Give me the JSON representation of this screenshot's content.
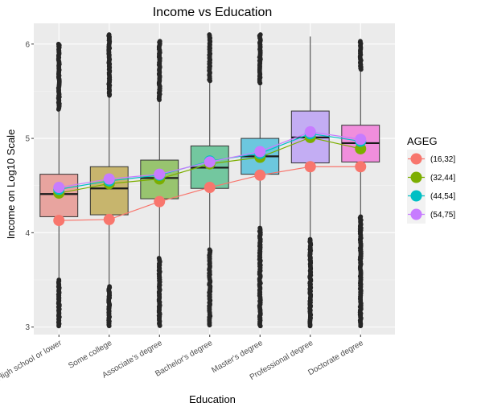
{
  "chart_data": {
    "type": "box",
    "title": "Income vs Education",
    "xlabel": "Education",
    "ylabel": "Income on Log10 Scale",
    "categories": [
      "High school or lower",
      "Some college",
      "Associate's degree",
      "Bachelor's degree",
      "Master's degree",
      "Professional degree",
      "Doctorate degree"
    ],
    "y_ticks": [
      3,
      4,
      5,
      6
    ],
    "ylim": [
      2.92,
      6.22
    ],
    "grid": true,
    "box_colors": [
      "#e8a49f",
      "#c7b56d",
      "#98c46f",
      "#73c79f",
      "#6cc7de",
      "#c3adf3",
      "#f08edc"
    ],
    "boxes": [
      {
        "q1": 4.17,
        "median": 4.41,
        "q3": 4.62,
        "whisker_low": 3.5,
        "whisker_high": 5.3,
        "ymin": 3.01,
        "ymax": 6.0
      },
      {
        "q1": 4.19,
        "median": 4.47,
        "q3": 4.7,
        "whisker_low": 3.43,
        "whisker_high": 5.45,
        "ymin": 3.01,
        "ymax": 6.1
      },
      {
        "q1": 4.36,
        "median": 4.58,
        "q3": 4.77,
        "whisker_low": 3.73,
        "whisker_high": 5.4,
        "ymin": 3.01,
        "ymax": 6.03
      },
      {
        "q1": 4.47,
        "median": 4.69,
        "q3": 4.92,
        "whisker_low": 3.82,
        "whisker_high": 5.6,
        "ymin": 3.01,
        "ymax": 6.1
      },
      {
        "q1": 4.62,
        "median": 4.81,
        "q3": 5.0,
        "whisker_low": 4.05,
        "whisker_high": 5.58,
        "ymin": 3.01,
        "ymax": 6.1
      },
      {
        "q1": 4.74,
        "median": 5.01,
        "q3": 5.29,
        "whisker_low": 3.93,
        "whisker_high": 6.08,
        "ymin": 3.01,
        "ymax": 6.08
      },
      {
        "q1": 4.75,
        "median": 4.95,
        "q3": 5.14,
        "whisker_low": 4.17,
        "whisker_high": 5.73,
        "ymin": 3.01,
        "ymax": 6.03
      }
    ],
    "legend_title": "AGEG",
    "legend_position": "right",
    "series": [
      {
        "name": "(16,32]",
        "color": "#f8766d",
        "values": [
          4.13,
          4.14,
          4.33,
          4.48,
          4.61,
          4.7,
          4.7
        ]
      },
      {
        "name": "(32,44]",
        "color": "#7cae00",
        "values": [
          4.42,
          4.52,
          4.57,
          4.73,
          4.8,
          5.01,
          4.89
        ]
      },
      {
        "name": "(44,54]",
        "color": "#00bfc4",
        "values": [
          4.46,
          4.55,
          4.61,
          4.76,
          4.84,
          5.05,
          4.97
        ]
      },
      {
        "name": "(54,75]",
        "color": "#c77cff",
        "values": [
          4.48,
          4.57,
          4.62,
          4.75,
          4.86,
          5.07,
          4.99
        ]
      }
    ]
  }
}
